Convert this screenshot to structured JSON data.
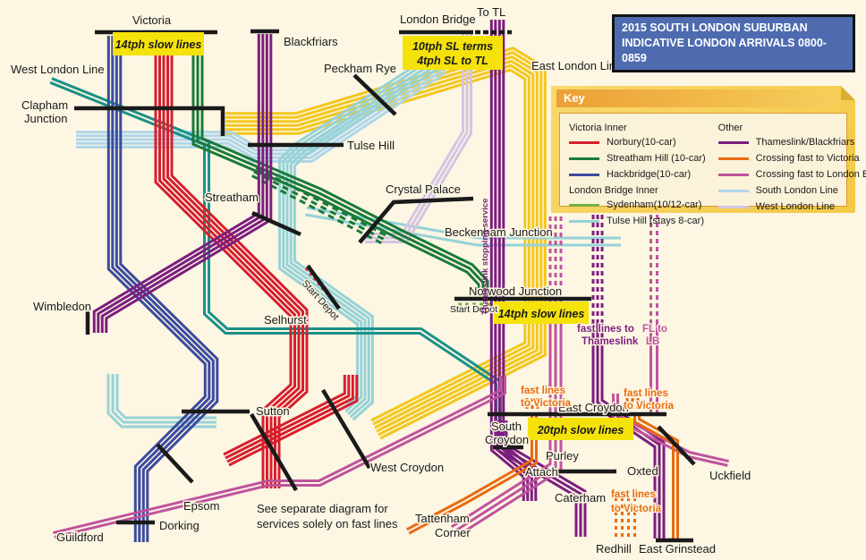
{
  "title": {
    "line1": "2015 SOUTH LONDON SUBURBAN",
    "line2": "INDICATIVE LONDON ARRIVALS 0800-0859"
  },
  "key": {
    "header": "Key",
    "groups": [
      {
        "heading": "Victoria Inner",
        "items": [
          {
            "label": "Norbury(10-car)",
            "color": "#d71f2e"
          },
          {
            "label": "Streatham Hill (10-car)",
            "color": "#1a7a38"
          },
          {
            "label": "Hackbridge(10-car)",
            "color": "#3c4b9e"
          }
        ]
      },
      {
        "heading": "London Bridge Inner",
        "items": [
          {
            "label": "Sydenham(10/12-car)",
            "color": "#76b043"
          },
          {
            "label": "Tulse Hill (stays 8-car)",
            "color": "#96d2d8"
          }
        ]
      },
      {
        "heading": "Other",
        "items": [
          {
            "label": "Thameslink/Blackfriars",
            "color": "#7b1e7e"
          },
          {
            "label": "Crossing fast to Victoria",
            "color": "#e96b10"
          },
          {
            "label": "Crossing fast to London B",
            "color": "#c0539e"
          },
          {
            "label": "South London Line",
            "color": "#aed6ea"
          },
          {
            "label": "West London Line",
            "color": "#d5c5e2"
          }
        ]
      }
    ]
  },
  "stations": {
    "victoria": "Victoria",
    "west_london_line": "West London Line",
    "clapham_junction": [
      "Clapham",
      "Junction"
    ],
    "blackfriars": "Blackfriars",
    "london_bridge": "London Bridge",
    "to_tl": "To TL",
    "east_london_line": "East London Line",
    "peckham_rye": "Peckham Rye",
    "tulse_hill": "Tulse Hill",
    "streatham": "Streatham",
    "crystal_palace": "Crystal Palace",
    "beckenham_junction": "Beckenham Junction",
    "wimbledon": "Wimbledon",
    "selhurst": "Selhurst",
    "norwood_junction": "Norwood Junction",
    "start_depot": "Start Depot",
    "start_depot_diag": "Start Depot",
    "sutton": "Sutton",
    "west_croydon": "West Croydon",
    "east_croydon": "East Croydon",
    "south_croydon": [
      "South",
      "Croydon"
    ],
    "purley": "Purley",
    "attach": "Attach",
    "caterham": "Caterham",
    "oxted": "Oxted",
    "uckfield": "Uckfield",
    "tattenham_corner": [
      "Tattenham",
      "Corner"
    ],
    "epsom": "Epsom",
    "dorking": "Dorking",
    "guildford": "Guildford",
    "redhill": "Redhill",
    "east_grinstead": "East Grinstead"
  },
  "annotations": {
    "box_14tph_victoria": "14tph slow lines",
    "box_sl": [
      "10tph SL terms",
      "4tph SL to TL"
    ],
    "box_14tph_norwood": "14tph slow lines",
    "box_20tph": "20tph slow lines",
    "fl_victoria": [
      "fast lines",
      "to Victoria"
    ],
    "fl_thameslink": [
      "fast lines to",
      "Thameslink"
    ],
    "fl_lb": [
      "FL to",
      "LB"
    ],
    "thameslink_service": "Thameslink stopping service",
    "note": [
      "See separate diagram for",
      "services solely on fast lines"
    ]
  },
  "colors": {
    "red": "#d71f2e",
    "green": "#1a7a38",
    "navy": "#3c4b9e",
    "sydenham": "#76b043",
    "cyan": "#96d2d8",
    "lightblue": "#aed6ea",
    "purple": "#7b1e7e",
    "orange": "#e96b10",
    "pink": "#c0539e",
    "lavender": "#d5c5e2",
    "teal": "#1b9189",
    "yellow": "#f3c71c",
    "bar": "#1a1a1a",
    "background": "#fcf6e3",
    "box_yellow": "#f5e20a",
    "title_bg": "#4e6bb0"
  }
}
